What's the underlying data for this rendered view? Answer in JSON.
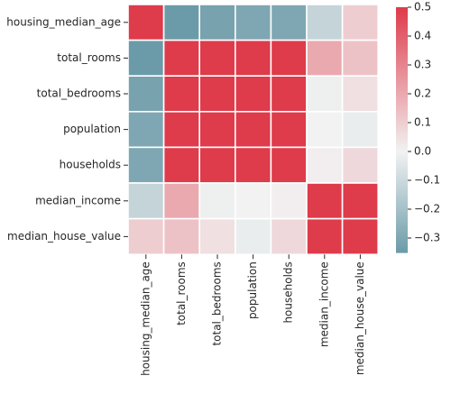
{
  "chart_data": {
    "type": "heatmap",
    "rows": [
      "housing_median_age",
      "total_rooms",
      "total_bedrooms",
      "population",
      "households",
      "median_income",
      "median_house_value"
    ],
    "cols": [
      "housing_median_age",
      "total_rooms",
      "total_bedrooms",
      "population",
      "households",
      "median_income",
      "median_house_value"
    ],
    "values": [
      [
        1.0,
        -0.36,
        -0.32,
        -0.3,
        -0.3,
        -0.12,
        0.1
      ],
      [
        -0.36,
        1.0,
        0.93,
        0.86,
        0.92,
        0.2,
        0.13
      ],
      [
        -0.32,
        0.93,
        1.0,
        0.88,
        0.98,
        -0.01,
        0.05
      ],
      [
        -0.3,
        0.86,
        0.88,
        1.0,
        0.91,
        0.0,
        -0.02
      ],
      [
        -0.3,
        0.92,
        0.98,
        0.91,
        1.0,
        0.01,
        0.07
      ],
      [
        -0.12,
        0.2,
        -0.01,
        0.0,
        0.01,
        1.0,
        0.69
      ],
      [
        0.1,
        0.13,
        0.05,
        -0.02,
        0.07,
        0.69,
        1.0
      ]
    ],
    "vmin": -0.35,
    "vmax": 0.5,
    "colorbar": {
      "ticks": [
        "0.5",
        "0.4",
        "0.3",
        "0.2",
        "0.1",
        "0.0",
        "−0.1",
        "−0.2",
        "−0.3"
      ],
      "tick_values": [
        0.5,
        0.4,
        0.3,
        0.2,
        0.1,
        0.0,
        -0.1,
        -0.2,
        -0.3
      ]
    },
    "colors": {
      "negative": "#6b9ba8",
      "center": "#f2f2f2",
      "positive": "#de3b4b",
      "gridline": "#ffffff"
    },
    "title": "",
    "xlabel": "",
    "ylabel": ""
  }
}
